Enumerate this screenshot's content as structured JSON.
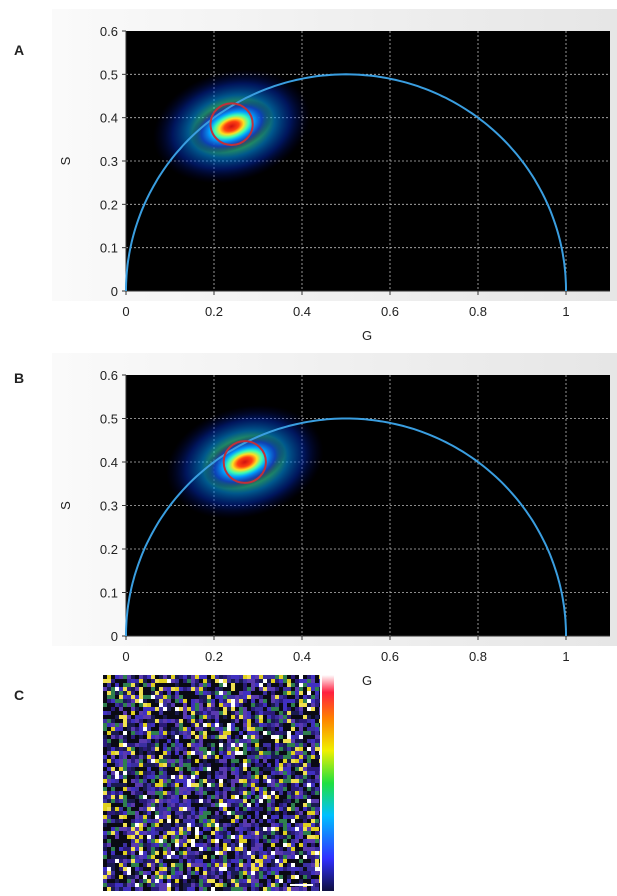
{
  "chart_data": [
    {
      "type": "phasor",
      "panel_label": "A",
      "xlabel": "G",
      "ylabel": "S",
      "xlim": [
        0,
        1.1
      ],
      "ylim": [
        0,
        0.6
      ],
      "xticks": [
        0,
        0.2,
        0.4,
        0.6,
        0.8,
        1
      ],
      "yticks": [
        0,
        0.1,
        0.2,
        0.3,
        0.4,
        0.5,
        0.6
      ],
      "grid": true,
      "curve_color": "#3a9ee0",
      "cursor_color": "#c0303a",
      "cloud": {
        "g": 0.24,
        "s": 0.38
      },
      "cursor": {
        "g": 0.24,
        "s": 0.385,
        "r": 0.048
      }
    },
    {
      "type": "phasor",
      "panel_label": "B",
      "xlabel": "G",
      "ylabel": "S",
      "xlim": [
        0,
        1.1
      ],
      "ylim": [
        0,
        0.6
      ],
      "xticks": [
        0,
        0.2,
        0.4,
        0.6,
        0.8,
        1
      ],
      "yticks": [
        0,
        0.1,
        0.2,
        0.3,
        0.4,
        0.5,
        0.6
      ],
      "grid": true,
      "curve_color": "#3a9ee0",
      "cursor_color": "#c0303a",
      "cloud": {
        "g": 0.27,
        "s": 0.4
      },
      "cursor": {
        "g": 0.27,
        "s": 0.4,
        "r": 0.048
      }
    },
    {
      "type": "image",
      "panel_label": "C"
    }
  ]
}
